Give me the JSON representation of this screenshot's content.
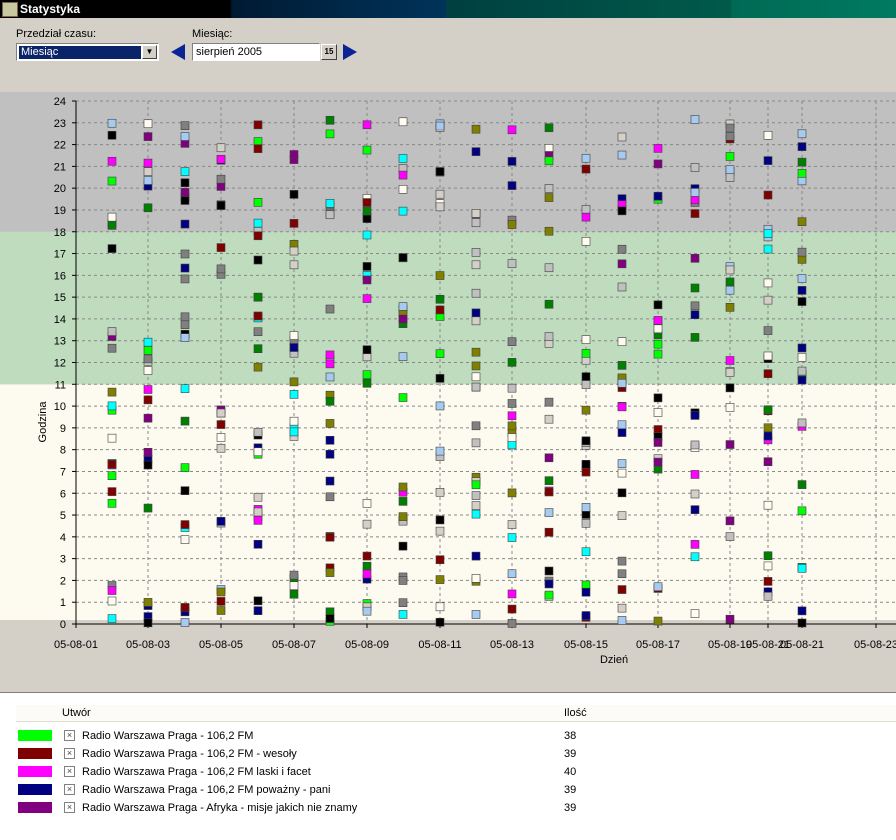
{
  "window": {
    "title": "Statystyka"
  },
  "controls": {
    "range_label": "Przedział czasu:",
    "range_value": "Miesiąc",
    "month_label": "Miesiąc:",
    "month_value": "sierpień 2005",
    "calendar_glyph": "15"
  },
  "chart_data": {
    "type": "scatter",
    "xlabel": "Dzień",
    "ylabel": "Godzina",
    "ylim": [
      0,
      24
    ],
    "yticks": [
      0,
      1,
      2,
      3,
      4,
      5,
      6,
      7,
      8,
      9,
      10,
      11,
      12,
      13,
      14,
      15,
      16,
      17,
      18,
      19,
      20,
      21,
      22,
      23,
      24
    ],
    "xticks": [
      "05-08-01",
      "05-08-03",
      "05-08-05",
      "05-08-07",
      "05-08-09",
      "05-08-11",
      "05-08-13",
      "05-08-15",
      "05-08-17",
      "05-08-19",
      "05-08-21",
      "05-08-21",
      "05-08-23"
    ],
    "bands": [
      {
        "from": 0,
        "to": 11,
        "color": "#fdfaf0"
      },
      {
        "from": 11,
        "to": 18,
        "color": "#bfdcbe"
      },
      {
        "from": 18,
        "to": 24,
        "color": "#c0c0c0"
      }
    ],
    "grid": true,
    "series": [
      {
        "name": "Radio Warszawa Praga - 106,2 FM",
        "color": "#00ff00"
      },
      {
        "name": "Radio Warszawa Praga - 106,2 FM - wesoły",
        "color": "#800000"
      },
      {
        "name": "Radio Warszawa Praga - 106,2 FM laski i facet",
        "color": "#ff00ff"
      },
      {
        "name": "Radio Warszawa Praga - 106,2 FM poważny - pani",
        "color": "#000080"
      },
      {
        "name": "Radio Warszawa Praga - Afryka - misje jakich nie znamy",
        "color": "#800080"
      }
    ]
  },
  "legend": {
    "col_title": "Utwór",
    "col_count": "Ilość",
    "rows": [
      {
        "color": "#00ff00",
        "name": "Radio Warszawa Praga - 106,2 FM",
        "count": "38"
      },
      {
        "color": "#800000",
        "name": "Radio Warszawa Praga - 106,2 FM - wesoły",
        "count": "39"
      },
      {
        "color": "#ff00ff",
        "name": "Radio Warszawa Praga - 106,2 FM laski i facet",
        "count": "40"
      },
      {
        "color": "#000080",
        "name": "Radio Warszawa Praga - 106,2 FM poważny - pani",
        "count": "39"
      },
      {
        "color": "#800080",
        "name": "Radio Warszawa Praga - Afryka - misje jakich nie znamy",
        "count": "39"
      }
    ]
  }
}
